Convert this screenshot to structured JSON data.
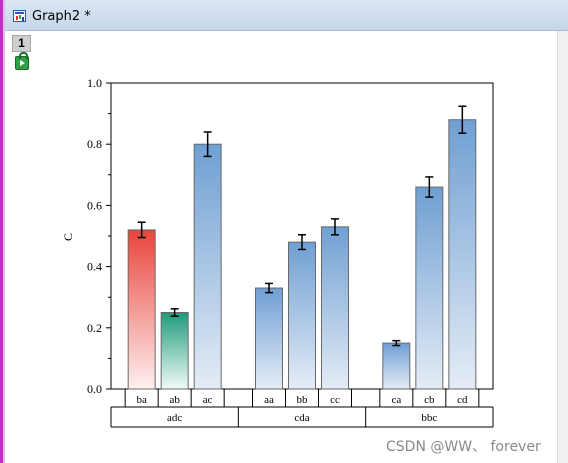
{
  "window": {
    "title": "Graph2 *",
    "layer_label": "1"
  },
  "watermark": "CSDN @WW、 forever",
  "colors": {
    "bar_blue_top": "#6f9fd2",
    "bar_blue_bottom": "#e4ecf6",
    "bar_red_top": "#e8453c",
    "bar_red_bottom": "#fff0f0",
    "bar_green_top": "#1f9a7a",
    "bar_green_bottom": "#f1fbf8"
  },
  "chart_data": {
    "type": "bar",
    "title": "",
    "xlabel": "",
    "ylabel": "C",
    "ylim": [
      0,
      1.0
    ],
    "yticks": [
      "0.0",
      "0.2",
      "0.4",
      "0.6",
      "0.8",
      "1.0"
    ],
    "grid": false,
    "legend": "none",
    "groups": [
      {
        "name": "adc",
        "bars": [
          {
            "label": "ba",
            "value": 0.52,
            "error": 0.025,
            "fill": "red"
          },
          {
            "label": "ab",
            "value": 0.25,
            "error": 0.012,
            "fill": "green"
          },
          {
            "label": "ac",
            "value": 0.8,
            "error": 0.04,
            "fill": "blue"
          }
        ]
      },
      {
        "name": "cda",
        "bars": [
          {
            "label": "aa",
            "value": 0.33,
            "error": 0.015,
            "fill": "blue"
          },
          {
            "label": "bb",
            "value": 0.48,
            "error": 0.024,
            "fill": "blue"
          },
          {
            "label": "cc",
            "value": 0.53,
            "error": 0.026,
            "fill": "blue"
          }
        ]
      },
      {
        "name": "bbc",
        "bars": [
          {
            "label": "ca",
            "value": 0.15,
            "error": 0.008,
            "fill": "blue"
          },
          {
            "label": "cb",
            "value": 0.66,
            "error": 0.033,
            "fill": "blue"
          },
          {
            "label": "cd",
            "value": 0.88,
            "error": 0.044,
            "fill": "blue"
          }
        ]
      }
    ]
  }
}
